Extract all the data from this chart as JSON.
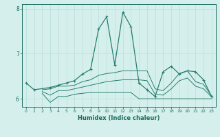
{
  "xlabel": "Humidex (Indice chaleur)",
  "x": [
    0,
    1,
    2,
    3,
    4,
    5,
    6,
    7,
    8,
    9,
    10,
    11,
    12,
    13,
    14,
    15,
    16,
    17,
    18,
    19,
    20,
    21,
    22,
    23
  ],
  "line_main": [
    6.35,
    6.2,
    null,
    6.25,
    6.3,
    6.35,
    6.4,
    6.55,
    6.65,
    7.55,
    7.82,
    6.75,
    7.92,
    7.6,
    6.35,
    6.2,
    6.05,
    6.6,
    6.72,
    6.55,
    6.62,
    6.6,
    6.42,
    6.05
  ],
  "line_upper": [
    null,
    null,
    6.2,
    6.22,
    6.28,
    6.28,
    6.3,
    6.38,
    6.42,
    6.52,
    6.56,
    6.58,
    6.62,
    6.62,
    6.62,
    6.62,
    6.22,
    6.18,
    6.35,
    6.56,
    6.62,
    6.38,
    6.32,
    6.06
  ],
  "line_lower": [
    null,
    null,
    6.12,
    5.92,
    6.05,
    6.05,
    6.1,
    6.12,
    6.14,
    6.14,
    6.14,
    6.14,
    6.14,
    6.14,
    6.0,
    6.0,
    6.0,
    6.0,
    6.0,
    6.0,
    6.0,
    6.0,
    6.0,
    6.0
  ],
  "line_mid": [
    null,
    null,
    6.16,
    6.08,
    6.18,
    6.18,
    6.22,
    6.26,
    6.3,
    6.34,
    6.38,
    6.4,
    6.42,
    6.42,
    6.42,
    6.4,
    6.1,
    6.08,
    6.22,
    6.4,
    6.46,
    6.28,
    6.22,
    6.04
  ],
  "ylim": [
    5.82,
    8.1
  ],
  "yticks": [
    6,
    7,
    8
  ],
  "xticks": [
    0,
    1,
    2,
    3,
    4,
    5,
    6,
    7,
    8,
    9,
    10,
    11,
    12,
    13,
    14,
    15,
    16,
    17,
    18,
    19,
    20,
    21,
    22,
    23
  ],
  "line_color": "#267d6e",
  "bg_color": "#d5f0ec",
  "grid_color": "#b8ddd8",
  "tick_color": "#1a6b5e",
  "marker": "+"
}
